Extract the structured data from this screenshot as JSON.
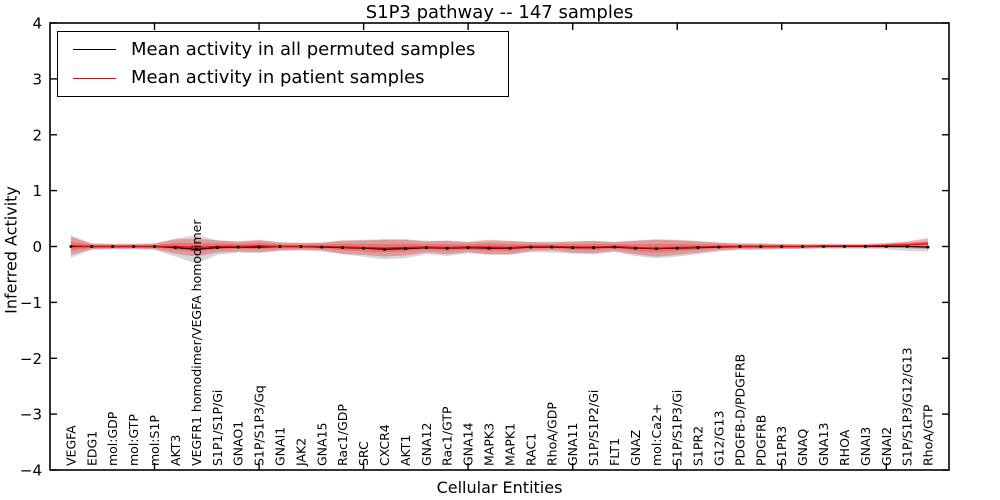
{
  "title": "S1P3 pathway -- 147 samples",
  "chart_data": {
    "type": "line",
    "title": "S1P3 pathway -- 147 samples",
    "xlabel": "Cellular Entities",
    "ylabel": "Inferred Activity",
    "ylim": [
      -4,
      4
    ],
    "yticks": [
      4,
      3,
      2,
      1,
      0,
      -1,
      -2,
      -3,
      -4
    ],
    "x_major_ticks": [
      5,
      10,
      15,
      20,
      25,
      30,
      35,
      40
    ],
    "grid": false,
    "legend_position": "upper left",
    "categories": [
      "VEGFA",
      "EDG1",
      "mol:GDP",
      "mol:GTP",
      "mol:S1P",
      "AKT3",
      "VEGFR1 homodimer/VEGFA homodimer",
      "S1P1/S1P/Gi",
      "GNAO1",
      "S1P/S1P3/Gq",
      "GNAI1",
      "JAK2",
      "GNA15",
      "Rac1/GDP",
      "SRC",
      "CXCR4",
      "AKT1",
      "GNA12",
      "Rac1/GTP",
      "GNA14",
      "MAPK3",
      "MAPK1",
      "RAC1",
      "RhoA/GDP",
      "GNA11",
      "S1P/S1P2/Gi",
      "FLT1",
      "GNAZ",
      "mol:Ca2+",
      "S1P/S1P3/Gi",
      "S1PR2",
      "G12/G13",
      "PDGFB-D/PDGFRB",
      "PDGFRB",
      "S1PR3",
      "GNAQ",
      "GNA13",
      "RHOA",
      "GNAI3",
      "GNAI2",
      "S1P/S1P3/G12/G13",
      "RhoA/GTP"
    ],
    "series": [
      {
        "name": "Mean activity in all permuted samples",
        "color": "#000000",
        "band_color": "#999999",
        "values": [
          0,
          0,
          0,
          0,
          0,
          -0.02,
          -0.05,
          -0.02,
          -0.01,
          -0.01,
          0,
          0,
          -0.01,
          -0.02,
          -0.03,
          -0.05,
          -0.04,
          -0.02,
          -0.03,
          -0.02,
          -0.03,
          -0.03,
          -0.01,
          -0.01,
          -0.02,
          -0.02,
          -0.01,
          -0.03,
          -0.04,
          -0.03,
          -0.02,
          -0.01,
          0,
          0,
          0,
          0,
          0,
          0,
          0,
          0,
          0,
          -0.01
        ],
        "band_halfwidth": [
          0.2,
          0.06,
          0.05,
          0.05,
          0.06,
          0.16,
          0.26,
          0.13,
          0.1,
          0.11,
          0.08,
          0.07,
          0.08,
          0.12,
          0.15,
          0.18,
          0.17,
          0.12,
          0.14,
          0.1,
          0.12,
          0.12,
          0.09,
          0.1,
          0.11,
          0.12,
          0.09,
          0.14,
          0.17,
          0.15,
          0.12,
          0.08,
          0.06,
          0.06,
          0.05,
          0.04,
          0.04,
          0.04,
          0.04,
          0.05,
          0.08,
          0.08
        ]
      },
      {
        "name": "Mean activity in patient samples",
        "color": "#ff0000",
        "band_color": "#e84040",
        "values": [
          0.01,
          0,
          0,
          0,
          0,
          0,
          -0.02,
          0,
          0,
          0.01,
          0,
          0,
          0,
          -0.01,
          -0.02,
          -0.03,
          -0.02,
          -0.01,
          -0.02,
          -0.01,
          -0.01,
          -0.02,
          0,
          0,
          -0.01,
          -0.01,
          0,
          -0.02,
          -0.03,
          -0.02,
          -0.01,
          0,
          0,
          0,
          0,
          0,
          0.01,
          0.01,
          0.01,
          0.02,
          0.03,
          0.05
        ],
        "band_halfwidth": [
          0.16,
          0.05,
          0.04,
          0.04,
          0.05,
          0.13,
          0.16,
          0.11,
          0.09,
          0.11,
          0.07,
          0.06,
          0.07,
          0.12,
          0.13,
          0.15,
          0.14,
          0.1,
          0.12,
          0.09,
          0.13,
          0.12,
          0.08,
          0.07,
          0.1,
          0.11,
          0.08,
          0.12,
          0.15,
          0.13,
          0.1,
          0.07,
          0.05,
          0.05,
          0.04,
          0.04,
          0.03,
          0.03,
          0.03,
          0.04,
          0.06,
          0.1
        ]
      }
    ]
  }
}
